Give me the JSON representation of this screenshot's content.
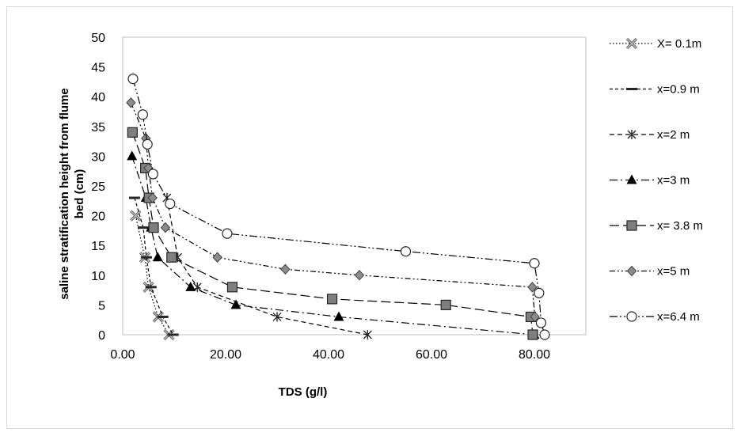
{
  "chart_data": {
    "type": "scatter",
    "title": "",
    "xlabel": "TDS  (g/l)",
    "ylabel_lines": [
      "saline stratification height from flume",
      "bed (cm)"
    ],
    "xlim": [
      0,
      90
    ],
    "ylim": [
      0,
      50
    ],
    "xticks": [
      0,
      20,
      40,
      60,
      80
    ],
    "xtick_labels": [
      "0.00",
      "20.00",
      "40.00",
      "60.00",
      "80.00"
    ],
    "yticks": [
      0,
      5,
      10,
      15,
      20,
      25,
      30,
      35,
      40,
      45,
      50
    ],
    "ytick_labels": [
      "0",
      "5",
      "10",
      "15",
      "20",
      "25",
      "30",
      "35",
      "40",
      "45",
      "50"
    ],
    "grid": "none",
    "legend_position": "right",
    "series": [
      {
        "name": "X= 0.1m",
        "marker": "x-box",
        "line": "dotted",
        "x": [
          2.5,
          4.3,
          5.0,
          6.9,
          9.0
        ],
        "y": [
          20,
          13,
          8,
          3,
          0
        ]
      },
      {
        "name": "x=0.9 m",
        "marker": "dash",
        "line": "short-dash",
        "x": [
          2.3,
          4.0,
          4.6,
          5.5,
          7.8,
          9.8
        ],
        "y": [
          23,
          18,
          13,
          8,
          3,
          0
        ]
      },
      {
        "name": "x=2 m",
        "marker": "asterisk",
        "line": "dash",
        "x": [
          8.6,
          10.7,
          14.5,
          30.0,
          47.6
        ],
        "y": [
          23,
          13,
          8,
          3,
          0
        ]
      },
      {
        "name": "x=3 m",
        "marker": "triangle",
        "line": "long-dash-dot",
        "x": [
          1.8,
          4.5,
          5.5,
          6.8,
          13.2,
          22.0,
          42.0,
          80.0
        ],
        "y": [
          30,
          23,
          18,
          13,
          8,
          5,
          3,
          0
        ]
      },
      {
        "name": "x= 3.8 m",
        "marker": "square",
        "line": "long-dash",
        "x": [
          1.9,
          4.4,
          5.1,
          6.0,
          9.5,
          21.3,
          40.7,
          62.8,
          79.3,
          79.7
        ],
        "y": [
          34,
          28,
          23,
          18,
          13,
          8,
          6,
          5,
          3,
          0
        ]
      },
      {
        "name": "x=5 m",
        "marker": "diamond",
        "line": "dash-dot-dot",
        "x": [
          1.6,
          4.5,
          5.0,
          5.8,
          8.3,
          18.4,
          31.6,
          46.0,
          79.6,
          80.1
        ],
        "y": [
          39,
          33,
          28,
          23,
          18,
          13,
          11,
          10,
          8,
          3
        ]
      },
      {
        "name": "x=6.4 m",
        "marker": "circle",
        "line": "long-dash-dot-dot",
        "x": [
          2.0,
          3.9,
          4.8,
          5.9,
          9.2,
          20.3,
          55.0,
          80.0,
          80.9,
          81.3,
          82.0
        ],
        "y": [
          43,
          37,
          32,
          27,
          22,
          17,
          14,
          12,
          7,
          2,
          0
        ]
      }
    ]
  }
}
